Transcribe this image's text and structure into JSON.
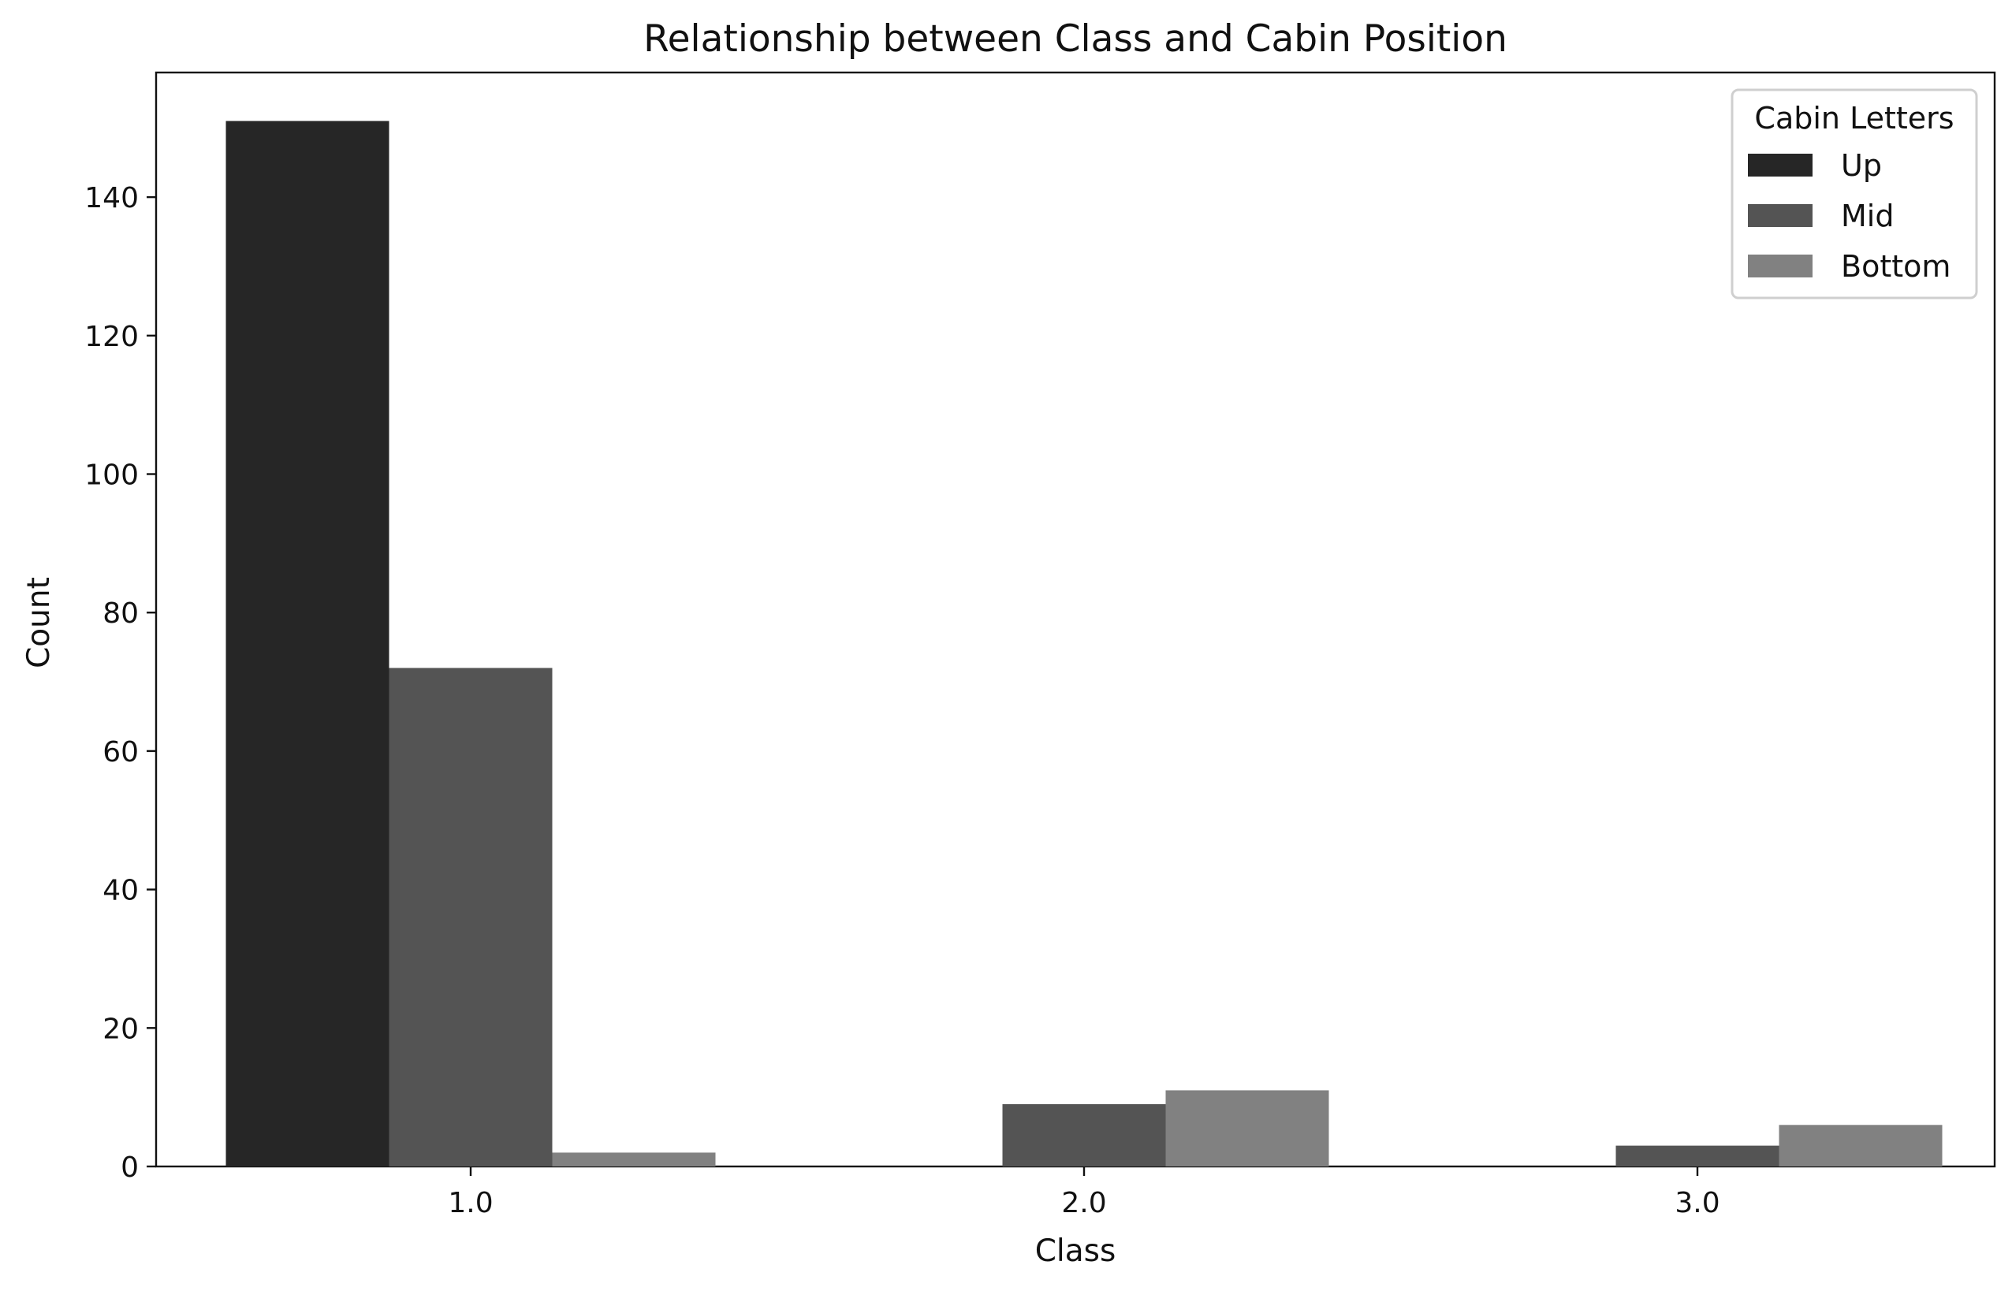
{
  "chart_data": {
    "type": "bar",
    "title": "Relationship between Class and Cabin Position",
    "xlabel": "Class",
    "ylabel": "Count",
    "categories": [
      "1.0",
      "2.0",
      "3.0"
    ],
    "series": [
      {
        "name": "Up",
        "values": [
          151,
          0,
          0
        ],
        "color": "#262626"
      },
      {
        "name": "Mid",
        "values": [
          72,
          9,
          3
        ],
        "color": "#545454"
      },
      {
        "name": "Bottom",
        "values": [
          2,
          11,
          6
        ],
        "color": "#818181"
      }
    ],
    "ylim": [
      0,
      158
    ],
    "yticks": [
      0,
      20,
      40,
      60,
      80,
      100,
      120,
      140
    ],
    "grid": false,
    "legend": {
      "title": "Cabin Letters",
      "position": "top-right"
    }
  }
}
